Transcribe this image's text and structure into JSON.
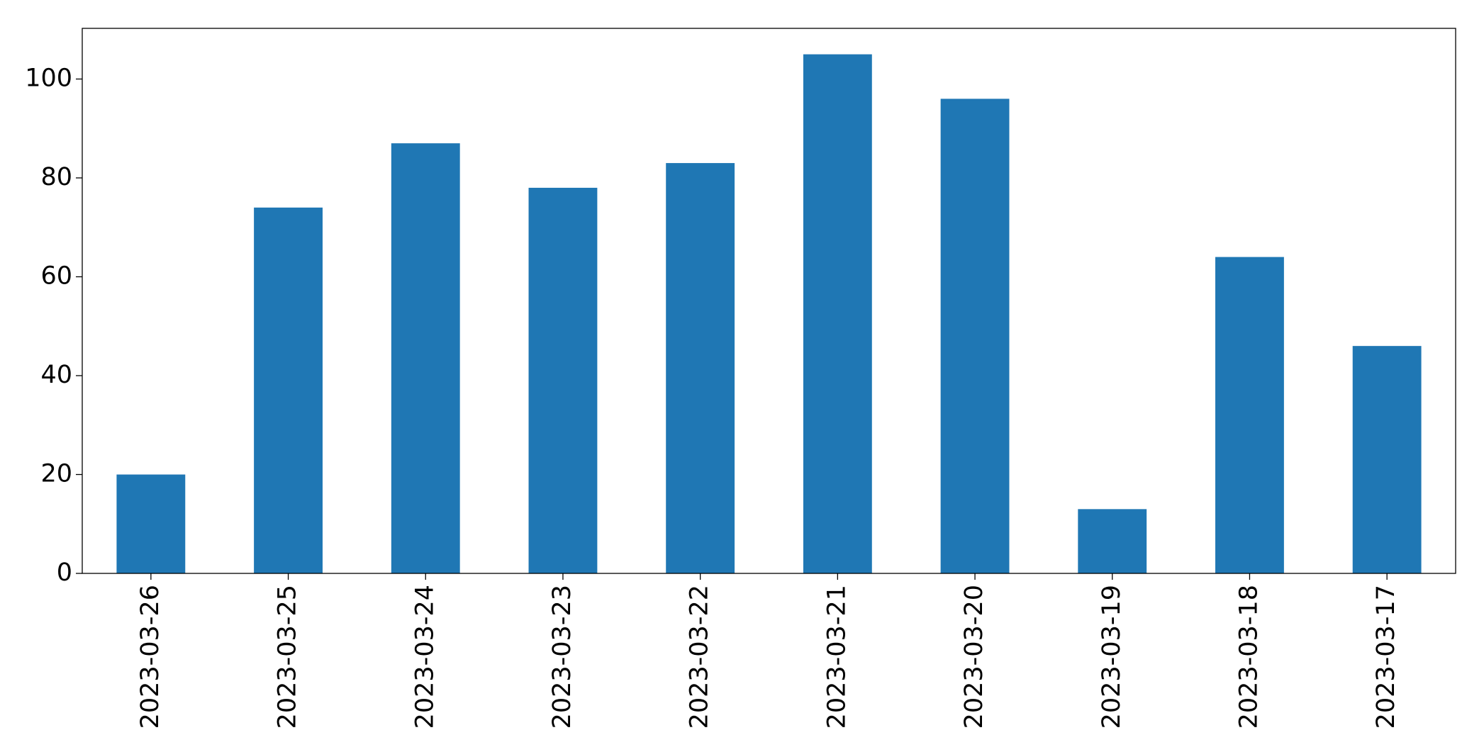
{
  "chart_data": {
    "type": "bar",
    "categories": [
      "2023-03-26",
      "2023-03-25",
      "2023-03-24",
      "2023-03-23",
      "2023-03-22",
      "2023-03-21",
      "2023-03-20",
      "2023-03-19",
      "2023-03-18",
      "2023-03-17"
    ],
    "values": [
      20,
      74,
      87,
      78,
      83,
      105,
      96,
      13,
      64,
      46
    ],
    "color": "#1f77b4",
    "ylim": [
      0,
      110.25
    ],
    "yticks": [
      0,
      20,
      40,
      60,
      80,
      100
    ],
    "grid": false
  }
}
